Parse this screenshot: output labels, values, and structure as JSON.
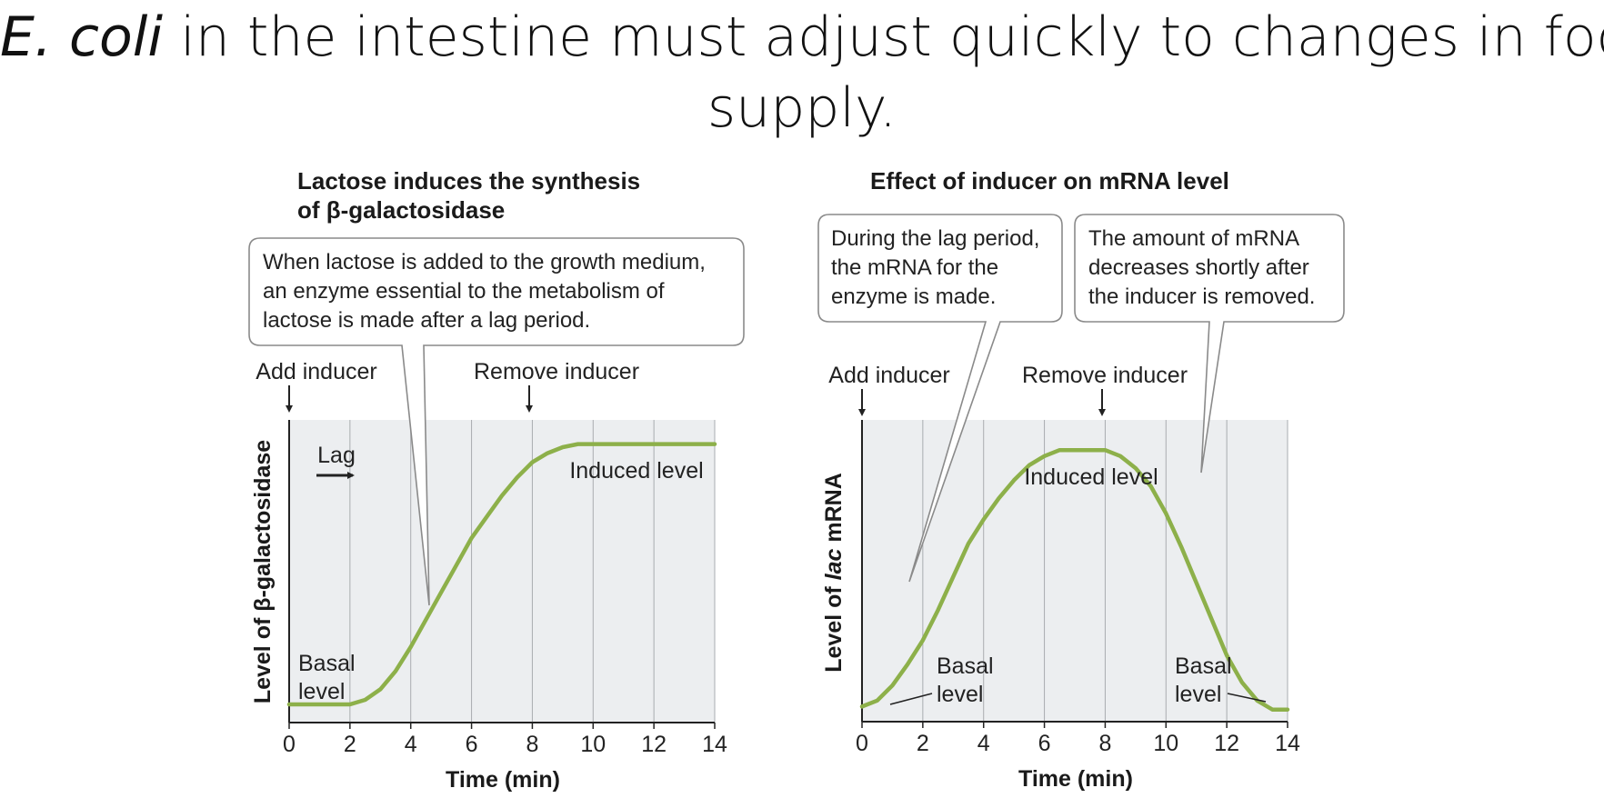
{
  "slide": {
    "title_italic": "E. coli",
    "title_rest": " in the intestine must adjust quickly to changes in food",
    "title_line2": "supply."
  },
  "chart_data": [
    {
      "type": "line",
      "title": "Lactose induces the synthesis of β-galactosidase",
      "title_lines": [
        "Lactose induces the synthesis",
        "of β-galactosidase"
      ],
      "xlabel": "Time (min)",
      "ylabel": "Level of β-galactosidase",
      "xlim": [
        0,
        14
      ],
      "ylim": [
        0,
        1
      ],
      "xticks": [
        0,
        2,
        4,
        6,
        8,
        10,
        12,
        14
      ],
      "grid": true,
      "series_color": "#8db04a",
      "series": [
        {
          "x": [
            0,
            2,
            2.5,
            3,
            3.5,
            4,
            4.5,
            5,
            5.5,
            6,
            6.5,
            7,
            7.5,
            8,
            8.5,
            9,
            9.5,
            10,
            11,
            12,
            13,
            14
          ],
          "y": [
            0.06,
            0.06,
            0.075,
            0.11,
            0.17,
            0.25,
            0.34,
            0.43,
            0.52,
            0.61,
            0.68,
            0.75,
            0.81,
            0.86,
            0.89,
            0.91,
            0.92,
            0.92,
            0.92,
            0.92,
            0.92,
            0.92
          ]
        }
      ],
      "annotations": {
        "add_inducer": "Add inducer",
        "remove_inducer": "Remove inducer",
        "lag": "Lag",
        "induced_level": "Induced level",
        "basal_line1": "Basal",
        "basal_line2": "level"
      },
      "callout_lines": [
        "When lactose is added to the growth medium,",
        "an enzyme essential to the metabolism of",
        "lactose is made after a lag period."
      ]
    },
    {
      "type": "line",
      "title": "Effect of inducer on mRNA level",
      "xlabel": "Time (min)",
      "ylabel_pre": "Level of ",
      "ylabel_italic": "lac",
      "ylabel_post": " mRNA",
      "xlim": [
        0,
        14
      ],
      "ylim": [
        0,
        1
      ],
      "xticks": [
        0,
        2,
        4,
        6,
        8,
        10,
        12,
        14
      ],
      "grid": true,
      "series_color": "#8db04a",
      "series": [
        {
          "x": [
            0,
            0.5,
            1,
            1.5,
            2,
            2.5,
            3,
            3.5,
            4,
            4.5,
            5,
            5.5,
            6,
            6.5,
            7,
            7.5,
            8,
            8.5,
            9,
            9.5,
            10,
            10.5,
            11,
            11.5,
            12,
            12.5,
            13,
            13.5,
            14
          ],
          "y": [
            0.05,
            0.07,
            0.12,
            0.19,
            0.27,
            0.37,
            0.48,
            0.59,
            0.67,
            0.74,
            0.8,
            0.85,
            0.88,
            0.9,
            0.9,
            0.9,
            0.9,
            0.88,
            0.84,
            0.78,
            0.69,
            0.58,
            0.46,
            0.34,
            0.22,
            0.13,
            0.07,
            0.04,
            0.04
          ]
        }
      ],
      "annotations": {
        "add_inducer": "Add inducer",
        "remove_inducer": "Remove inducer",
        "induced_level": "Induced level",
        "basal_line1": "Basal",
        "basal_line2": "level"
      },
      "callout1_lines": [
        "During the lag period,",
        "the mRNA for the",
        "enzyme is made."
      ],
      "callout2_lines": [
        "The amount of mRNA",
        "decreases shortly after",
        "the inducer is removed."
      ]
    }
  ]
}
